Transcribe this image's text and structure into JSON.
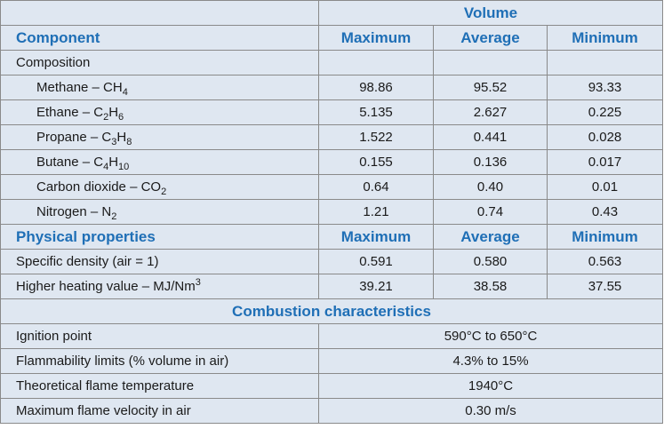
{
  "header": {
    "group_label": "Volume",
    "component_label": "Component",
    "col_max": "Maximum",
    "col_avg": "Average",
    "col_min": "Minimum"
  },
  "composition": {
    "label": "Composition",
    "rows": [
      {
        "name": "Methane – CH",
        "sub1": "4",
        "mid": "",
        "sub2": "",
        "max": "98.86",
        "avg": "95.52",
        "min": "93.33"
      },
      {
        "name": "Ethane – C",
        "sub1": "2",
        "mid": "H",
        "sub2": "6",
        "max": "5.135",
        "avg": "2.627",
        "min": "0.225"
      },
      {
        "name": "Propane – C",
        "sub1": "3",
        "mid": "H",
        "sub2": "8",
        "max": "1.522",
        "avg": "0.441",
        "min": "0.028"
      },
      {
        "name": "Butane – C",
        "sub1": "4",
        "mid": "H",
        "sub2": "10",
        "max": "0.155",
        "avg": "0.136",
        "min": "0.017"
      },
      {
        "name": "Carbon dioxide –  CO",
        "sub1": "2",
        "mid": "",
        "sub2": "",
        "max": "0.64",
        "avg": "0.40",
        "min": "0.01"
      },
      {
        "name": "Nitrogen – N",
        "sub1": "2",
        "mid": "",
        "sub2": "",
        "max": "1.21",
        "avg": "0.74",
        "min": "0.43"
      }
    ]
  },
  "physical": {
    "label": "Physical properties",
    "col_max": "Maximum",
    "col_avg": "Average",
    "col_min": "Minimum",
    "density": {
      "name": "Specific density (air = 1)",
      "max": "0.591",
      "avg": "0.580",
      "min": "0.563"
    },
    "heating": {
      "name": "Higher heating value –  MJ/Nm",
      "sup": "3",
      "max": "39.21",
      "avg": "38.58",
      "min": "37.55"
    }
  },
  "combustion": {
    "label": "Combustion characteristics",
    "rows": [
      {
        "name": "Ignition point",
        "value": "590°C to 650°C"
      },
      {
        "name": "Flammability limits (% volume in air)",
        "value": "4.3% to 15%"
      },
      {
        "name": "Theoretical flame temperature",
        "value": "1940°C"
      },
      {
        "name": "Maximum flame velocity in air",
        "value": "0.30 m/s"
      }
    ]
  }
}
